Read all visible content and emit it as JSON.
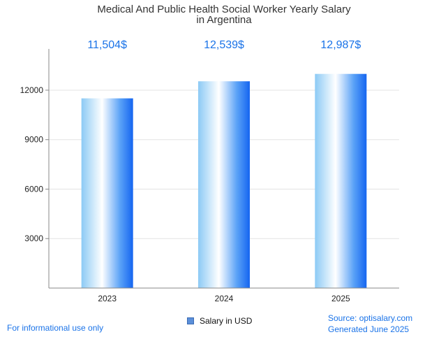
{
  "chart_data": {
    "type": "bar",
    "title_lines": [
      "Medical And Public Health Social Worker Yearly Salary",
      "in Argentina"
    ],
    "categories": [
      "2023",
      "2024",
      "2025"
    ],
    "series": [
      {
        "name": "Salary in USD",
        "values": [
          11504,
          12539,
          12987
        ]
      }
    ],
    "data_labels": [
      "11,504$",
      "12,539$",
      "12,987$"
    ],
    "ylim": [
      0,
      14500
    ],
    "yticks": [
      3000,
      6000,
      9000,
      12000
    ],
    "grid": true,
    "legend": "bottom-center",
    "colors": {
      "bar_light": "#ffffff",
      "bar_mid": "#9fd3f7",
      "bar_dark": "#1a6cf2",
      "label": "#1a73e8"
    }
  },
  "footer": {
    "disclaimer": "For informational use only",
    "source": "Source: optisalary.com",
    "generated": "Generated June 2025"
  }
}
